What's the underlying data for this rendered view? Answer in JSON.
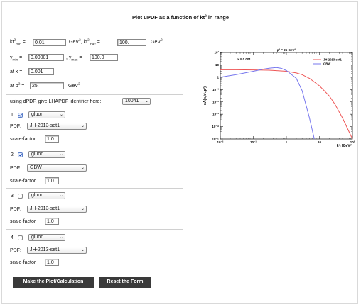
{
  "page": {
    "title": "Plot uPDF as a function of kt",
    "title_sup": "2",
    "title_end": " in range"
  },
  "ranges": {
    "kt2_min_label": "kt",
    "kt2_min_sub": "min",
    "kt2_min_value": "0.01",
    "kt2_unit": "GeV",
    "kt2_max_label": ", kt",
    "kt2_max_sub": "max",
    "kt2_max_value": "100.",
    "y_min_label": "y",
    "y_min_sub": "min",
    "y_min_value": "0.00001",
    "y_max_label": ", y",
    "y_max_sub": "max",
    "y_max_value": "100.0",
    "x_label": "at x =",
    "x_value": "0.001",
    "p2_label": "at p",
    "p2_value": "25.",
    "p2_unit": "GeV"
  },
  "lhapdf": {
    "label": "using dPDF, give LHAPDF identifier here:",
    "value": "10041"
  },
  "pdf_blocks": [
    {
      "number": "1",
      "checked": true,
      "parton": "gluon",
      "pdf_label": "PDF:",
      "pdf": "JH-2013-set1",
      "scale_label": "scale-factor",
      "scale": "1.0"
    },
    {
      "number": "2",
      "checked": true,
      "parton": "gluon",
      "pdf_label": "PDF:",
      "pdf": "GBW",
      "scale_label": "scale-factor",
      "scale": "1.0"
    },
    {
      "number": "3",
      "checked": false,
      "parton": "gluon",
      "pdf_label": "PDF:",
      "pdf": "JH-2013-set1",
      "scale_label": "scale-factor",
      "scale": "1.0"
    },
    {
      "number": "4",
      "checked": false,
      "parton": "gluon",
      "pdf_label": "PDF:",
      "pdf": "JH-2013-set1",
      "scale_label": "scale-factor",
      "scale": "1.0"
    }
  ],
  "buttons": {
    "make_plot": "Make the Plot/Calculation",
    "reset": "Reset the Form"
  },
  "chart_data": {
    "type": "line",
    "title": "p² = 25 GeV²",
    "annotation": "x = 0.001",
    "xlabel": "k²ₜ [GeV²]",
    "ylabel": "xA(x,k²ₜ,p²)",
    "xscale": "log",
    "yscale": "log",
    "xlim": [
      0.01,
      100
    ],
    "ylim": [
      1e-05,
      100
    ],
    "x_ticks": [
      "10⁻²",
      "10⁻¹",
      "1",
      "10",
      "10²"
    ],
    "y_ticks": [
      "10²",
      "10",
      "1",
      "10⁻¹",
      "10⁻²",
      "10⁻³",
      "10⁻⁴",
      "10⁻⁵"
    ],
    "legend_position": "top-right",
    "series": [
      {
        "name": "JH-2013-set1",
        "color": "#ee5555",
        "x": [
          0.01,
          0.03,
          0.1,
          0.3,
          1,
          2,
          3,
          5,
          10,
          20,
          30,
          50,
          100
        ],
        "y": [
          4.0,
          4.0,
          3.9,
          3.7,
          3.0,
          2.2,
          1.6,
          0.8,
          0.2,
          0.03,
          0.006,
          0.0005,
          1e-05
        ]
      },
      {
        "name": "GBW",
        "color": "#7777ee",
        "x": [
          0.01,
          0.03,
          0.1,
          0.2,
          0.3,
          0.5,
          0.7,
          1,
          2,
          3,
          5,
          7
        ],
        "y": [
          1.0,
          1.6,
          3.0,
          4.5,
          5.3,
          6.0,
          5.2,
          3.5,
          0.8,
          0.08,
          0.0005,
          1e-05
        ]
      }
    ]
  }
}
